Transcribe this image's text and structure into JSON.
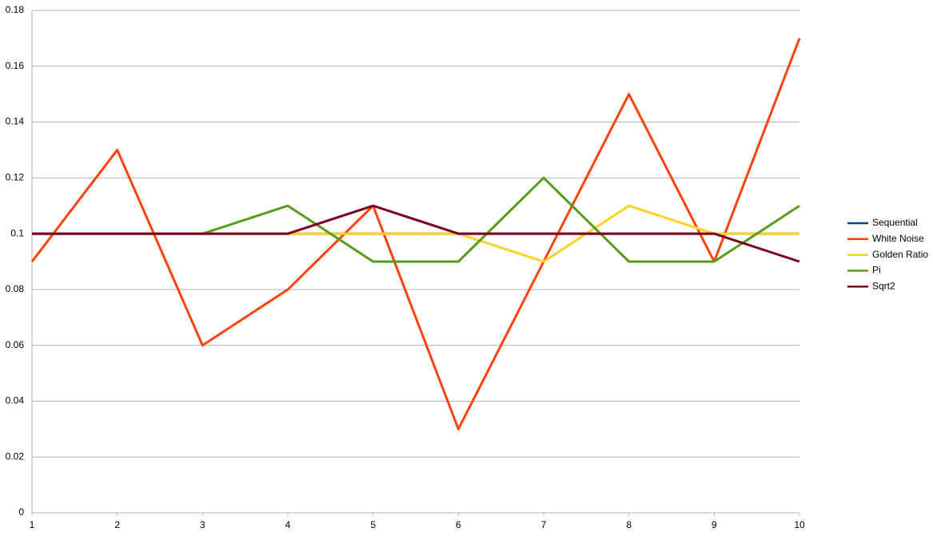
{
  "chart_data": {
    "type": "line",
    "categories": [
      "1",
      "2",
      "3",
      "4",
      "5",
      "6",
      "7",
      "8",
      "9",
      "10"
    ],
    "series": [
      {
        "name": "Sequential",
        "color": "#004586",
        "values": [
          0.1,
          0.1,
          0.1,
          0.1,
          0.1,
          0.1,
          0.1,
          0.1,
          0.1,
          0.1
        ]
      },
      {
        "name": "White Noise",
        "color": "#ff420e",
        "values": [
          0.09,
          0.13,
          0.06,
          0.08,
          0.11,
          0.03,
          0.09,
          0.15,
          0.09,
          0.17
        ]
      },
      {
        "name": "Golden Ratio",
        "color": "#ffd320",
        "values": [
          0.1,
          0.1,
          0.1,
          0.1,
          0.1,
          0.1,
          0.09,
          0.11,
          0.1,
          0.1
        ]
      },
      {
        "name": "Pi",
        "color": "#579d1c",
        "values": [
          0.1,
          0.1,
          0.1,
          0.11,
          0.09,
          0.09,
          0.12,
          0.09,
          0.09,
          0.11
        ]
      },
      {
        "name": "Sqrt2",
        "color": "#7e0021",
        "values": [
          0.1,
          0.1,
          0.1,
          0.1,
          0.11,
          0.1,
          0.1,
          0.1,
          0.1,
          0.09
        ]
      }
    ],
    "ylim": [
      0,
      0.18
    ],
    "yticks": [
      0,
      0.02,
      0.04,
      0.06,
      0.08,
      0.1,
      0.12,
      0.14,
      0.16,
      0.18
    ],
    "grid": true,
    "legend": "right"
  }
}
